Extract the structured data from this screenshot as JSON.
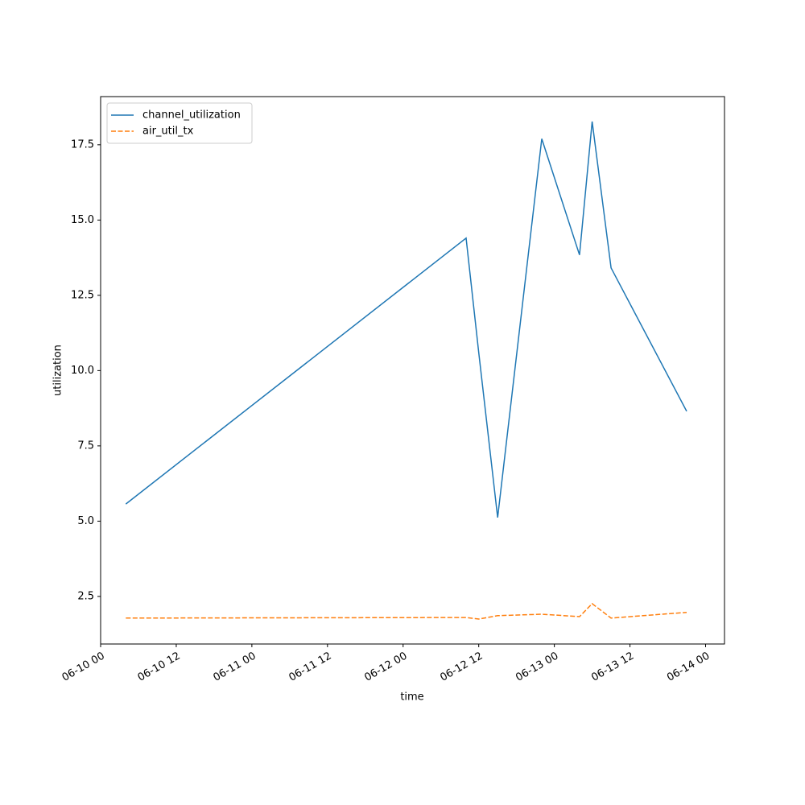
{
  "chart_data": {
    "type": "line",
    "x_label": "time",
    "y_label": "utilization",
    "x": [
      "06-10 04",
      "06-12 10",
      "06-12 12",
      "06-12 15",
      "06-12 22",
      "06-13 04",
      "06-13 06",
      "06-13 09",
      "06-13 21"
    ],
    "series": [
      {
        "name": "channel_utilization",
        "color": "#1f77b4",
        "linestyle": "solid",
        "values": [
          5.57,
          14.4,
          10.6,
          5.12,
          17.7,
          13.84,
          18.27,
          13.41,
          8.65
        ]
      },
      {
        "name": "air_util_tx",
        "color": "#ff7f0e",
        "linestyle": "dashed",
        "values": [
          1.78,
          1.8,
          1.75,
          1.86,
          1.91,
          1.83,
          2.26,
          1.78,
          1.97
        ]
      }
    ],
    "xlim": [
      "06-10 00",
      "06-14 03"
    ],
    "xticks": [
      "06-10 00",
      "06-10 12",
      "06-11 00",
      "06-11 12",
      "06-12 00",
      "06-12 12",
      "06-13 00",
      "06-13 12",
      "06-14 00"
    ],
    "ylim": [
      0.92,
      19.1
    ],
    "yticks": [
      2.5,
      {
        "value": 5,
        "label": "5.0"
      },
      7.5,
      {
        "value": 10,
        "label": "10.0"
      },
      12.5,
      {
        "value": 15,
        "label": "15.0"
      },
      17.5
    ],
    "legend": "upper left",
    "grid": false
  }
}
